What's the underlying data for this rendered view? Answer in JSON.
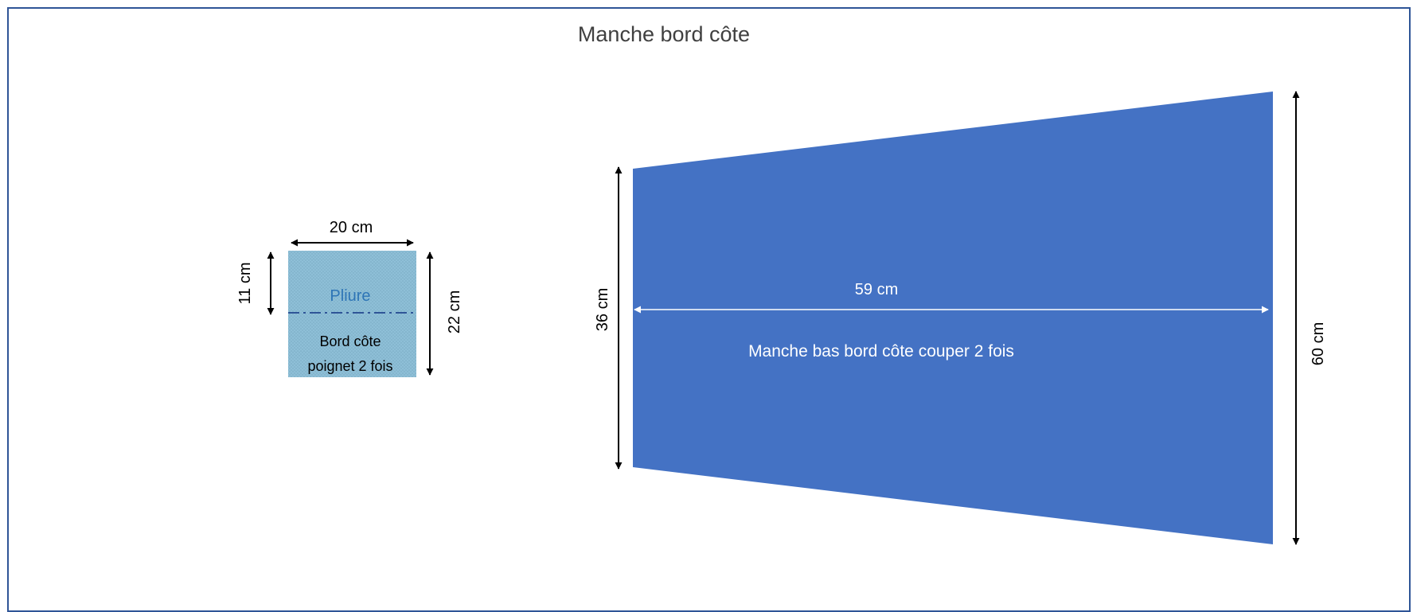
{
  "title": "Manche bord côte",
  "colors": {
    "frame": "#2f5597",
    "sleeve_fill": "#4472c4",
    "cuff_fill": "#8fc0d8",
    "fold_line": "#2f5597",
    "pliure_text": "#2e75b6",
    "arrow": "#000000",
    "inner_arrow": "#ffffff"
  },
  "cuff": {
    "fold_label": "Pliure",
    "label_line1": "Bord côte",
    "label_line2": "poignet 2 fois",
    "width_label": "20 cm",
    "half_height_label": "11 cm",
    "height_label": "22 cm"
  },
  "sleeve": {
    "label": "Manche bas bord côte couper 2 fois",
    "length_label": "59 cm",
    "left_height_label": "36 cm",
    "right_height_label": "60 cm"
  }
}
